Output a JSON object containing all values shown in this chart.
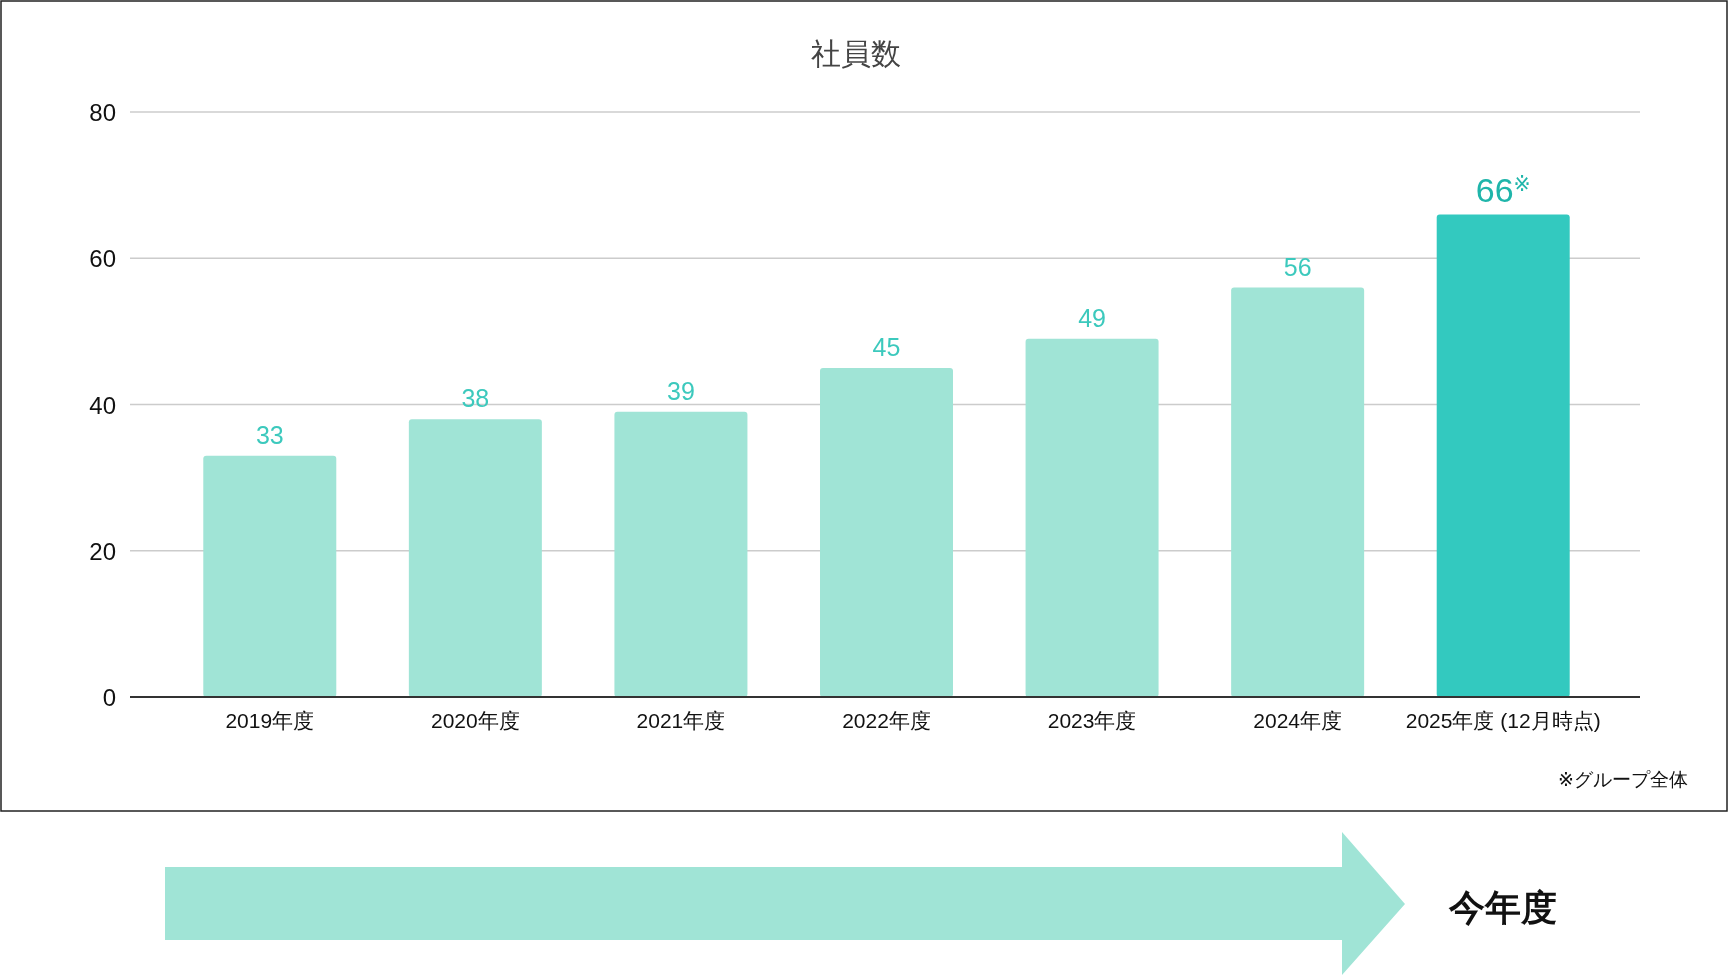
{
  "chart_data": {
    "type": "bar",
    "title": "社員数",
    "categories": [
      "2019年度",
      "2020年度",
      "2021年度",
      "2022年度",
      "2023年度",
      "2024年度",
      "2025年度 (12月時点)"
    ],
    "values": [
      33,
      38,
      39,
      45,
      49,
      56,
      66
    ],
    "colors": [
      "#a0e4d6",
      "#a0e4d6",
      "#a0e4d6",
      "#a0e4d6",
      "#a0e4d6",
      "#a0e4d6",
      "#33c9bf"
    ],
    "value_labels": [
      "33",
      "38",
      "39",
      "45",
      "49",
      "56",
      "66$^{※}$"
    ],
    "ylim": [
      0,
      80
    ],
    "yticks": [
      0,
      20,
      40,
      60,
      80
    ],
    "grid": "y",
    "annotations": [
      "※グループ全体",
      "今年度"
    ]
  }
}
